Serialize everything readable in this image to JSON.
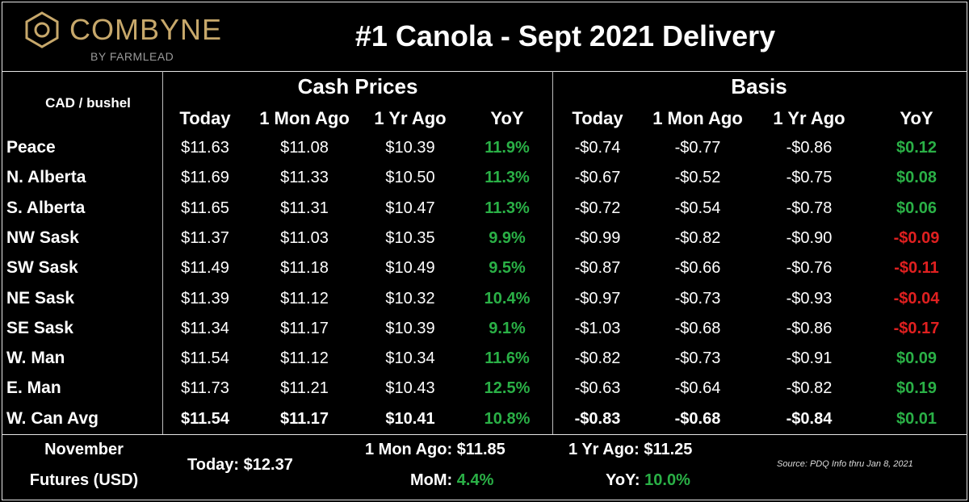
{
  "brand": {
    "name": "COMBYNE",
    "byline": "BY FARMLEAD",
    "logo_color": "#c7a86b"
  },
  "title": "#1 Canola - Sept 2021 Delivery",
  "unit_label": "CAD / bushel",
  "groups": {
    "cash": "Cash Prices",
    "basis": "Basis"
  },
  "columns": [
    "Today",
    "1 Mon Ago",
    "1 Yr Ago",
    "YoY"
  ],
  "rows": [
    {
      "region": "Peace",
      "cash": [
        "$11.63",
        "$11.08",
        "$10.39",
        "11.9%"
      ],
      "basis": [
        "-$0.74",
        "-$0.77",
        "-$0.86",
        "$0.12"
      ],
      "basis_yoy_sign": "pos"
    },
    {
      "region": "N. Alberta",
      "cash": [
        "$11.69",
        "$11.33",
        "$10.50",
        "11.3%"
      ],
      "basis": [
        "-$0.67",
        "-$0.52",
        "-$0.75",
        "$0.08"
      ],
      "basis_yoy_sign": "pos"
    },
    {
      "region": "S. Alberta",
      "cash": [
        "$11.65",
        "$11.31",
        "$10.47",
        "11.3%"
      ],
      "basis": [
        "-$0.72",
        "-$0.54",
        "-$0.78",
        "$0.06"
      ],
      "basis_yoy_sign": "pos"
    },
    {
      "region": "NW Sask",
      "cash": [
        "$11.37",
        "$11.03",
        "$10.35",
        "9.9%"
      ],
      "basis": [
        "-$0.99",
        "-$0.82",
        "-$0.90",
        "-$0.09"
      ],
      "basis_yoy_sign": "neg"
    },
    {
      "region": "SW Sask",
      "cash": [
        "$11.49",
        "$11.18",
        "$10.49",
        "9.5%"
      ],
      "basis": [
        "-$0.87",
        "-$0.66",
        "-$0.76",
        "-$0.11"
      ],
      "basis_yoy_sign": "neg"
    },
    {
      "region": "NE Sask",
      "cash": [
        "$11.39",
        "$11.12",
        "$10.32",
        "10.4%"
      ],
      "basis": [
        "-$0.97",
        "-$0.73",
        "-$0.93",
        "-$0.04"
      ],
      "basis_yoy_sign": "neg"
    },
    {
      "region": "SE Sask",
      "cash": [
        "$11.34",
        "$11.17",
        "$10.39",
        "9.1%"
      ],
      "basis": [
        "-$1.03",
        "-$0.68",
        "-$0.86",
        "-$0.17"
      ],
      "basis_yoy_sign": "neg"
    },
    {
      "region": "W. Man",
      "cash": [
        "$11.54",
        "$11.12",
        "$10.34",
        "11.6%"
      ],
      "basis": [
        "-$0.82",
        "-$0.73",
        "-$0.91",
        "$0.09"
      ],
      "basis_yoy_sign": "pos"
    },
    {
      "region": "E. Man",
      "cash": [
        "$11.73",
        "$11.21",
        "$10.43",
        "12.5%"
      ],
      "basis": [
        "-$0.63",
        "-$0.64",
        "-$0.82",
        "$0.19"
      ],
      "basis_yoy_sign": "pos"
    },
    {
      "region": "W. Can Avg",
      "cash": [
        "$11.54",
        "$11.17",
        "$10.41",
        "10.8%"
      ],
      "basis": [
        "-$0.83",
        "-$0.68",
        "-$0.84",
        "$0.01"
      ],
      "basis_yoy_sign": "pos",
      "bold": true
    }
  ],
  "futures": {
    "label_line1": "November",
    "label_line2": "Futures (USD)",
    "today_label": "Today:",
    "today_value": "$12.37",
    "mon_ago_label": "1 Mon Ago:",
    "mon_ago_value": "$11.85",
    "yr_ago_label": "1 Yr Ago:",
    "yr_ago_value": "$11.25",
    "mom_label": "MoM:",
    "mom_value": "4.4%",
    "yoy_label": "YoY:",
    "yoy_value": "10.0%"
  },
  "source": "Source: PDQ Info thru Jan 8, 2021",
  "colors": {
    "positive": "#2ab046",
    "negative": "#e02020",
    "background": "#000000",
    "text": "#ffffff"
  }
}
